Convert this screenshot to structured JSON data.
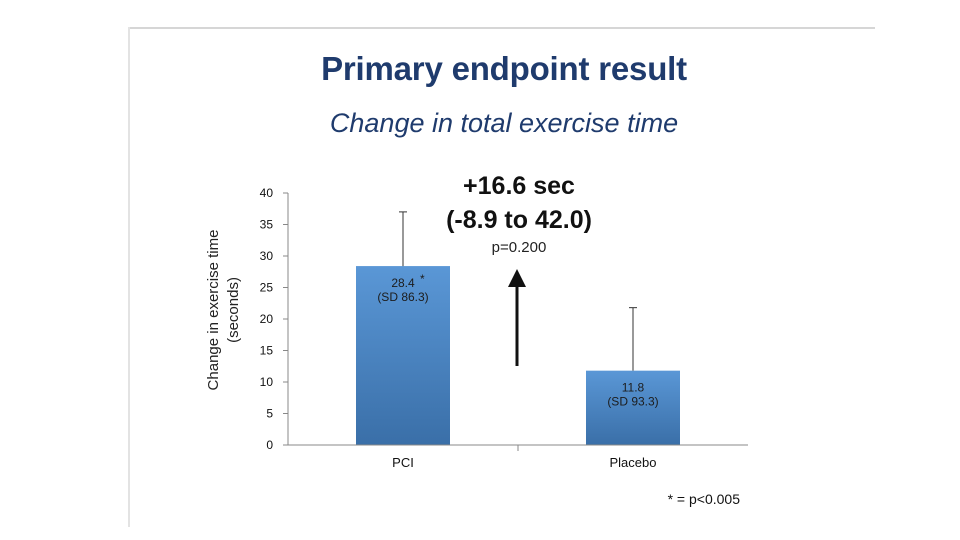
{
  "slide": {
    "title": "Primary endpoint result",
    "subtitle": "Change in total exercise time",
    "title_color": "#1f3b6d"
  },
  "chart_data": {
    "type": "bar",
    "categories": [
      "PCI",
      "Placebo"
    ],
    "values": [
      28.4,
      11.8
    ],
    "error_upper": [
      37.0,
      21.8
    ],
    "bar_labels": [
      {
        "value_text": "28.4",
        "marker": "*",
        "sd_text": "(SD 86.3)"
      },
      {
        "value_text": "11.8",
        "marker": "",
        "sd_text": "(SD 93.3)"
      }
    ],
    "ylabel_line1": "Change in exercise time",
    "ylabel_line2": "(seconds)",
    "ylim": [
      0,
      40
    ],
    "yticks": [
      0,
      5,
      10,
      15,
      20,
      25,
      30,
      35,
      40
    ],
    "bar_color": "#4a86c7",
    "annotation": {
      "difference": "+16.6 sec",
      "ci": "(-8.9 to 42.0)",
      "p_value": "p=0.200"
    },
    "footnote": "* = p<0.005"
  }
}
